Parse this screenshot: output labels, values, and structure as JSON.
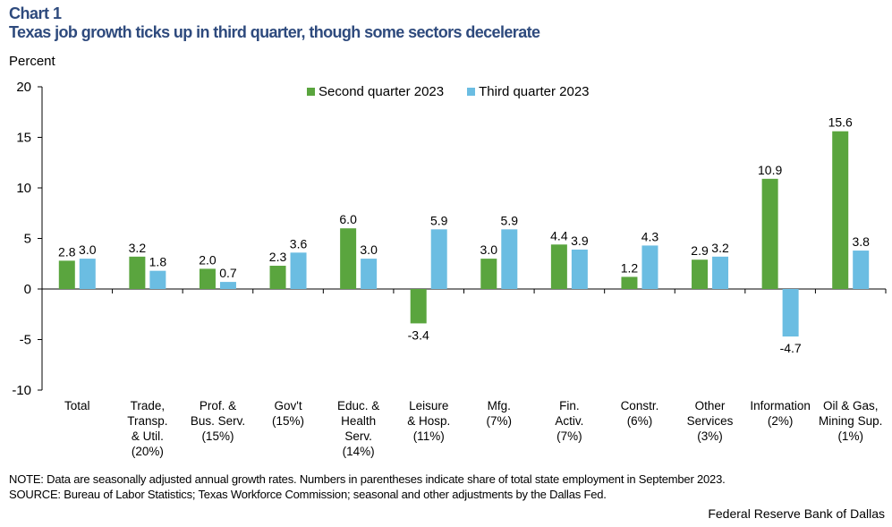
{
  "header": {
    "chart_number": "Chart 1",
    "title": "Texas job growth ticks up in third quarter, though some sectors decelerate",
    "unit_label": "Percent"
  },
  "footer": {
    "note": "NOTE: Data are seasonally adjusted annual growth rates. Numbers in parentheses indicate share of total state employment in September 2023.",
    "source": "SOURCE: Bureau of Labor Statistics; Texas Workforce Commission; seasonal and other adjustments by the Dallas Fed.",
    "credit": "Federal Reserve Bank of Dallas"
  },
  "colors": {
    "second_quarter": "#5aa53e",
    "third_quarter": "#6bbde2"
  },
  "chart_data": {
    "type": "bar",
    "title": "Texas job growth ticks up in third quarter, though some sectors decelerate",
    "xlabel": "",
    "ylabel": "Percent",
    "ylim": [
      -10,
      20
    ],
    "yticks": [
      20,
      15,
      10,
      5,
      0,
      -5,
      -10
    ],
    "grid": false,
    "legend_position": "top-center",
    "categories": [
      [
        "Total"
      ],
      [
        "Trade,",
        "Transp.",
        "& Util.",
        "(20%)"
      ],
      [
        "Prof. &",
        "Bus. Serv.",
        "(15%)"
      ],
      [
        "Gov't",
        "(15%)"
      ],
      [
        "Educ. &",
        "Health",
        "Serv.",
        "(14%)"
      ],
      [
        "Leisure",
        "& Hosp.",
        "(11%)"
      ],
      [
        "Mfg.",
        "(7%)"
      ],
      [
        "Fin.",
        "Activ.",
        "(7%)"
      ],
      [
        "Constr.",
        "(6%)"
      ],
      [
        "Other",
        "Services",
        "(3%)"
      ],
      [
        "Information",
        "(2%)"
      ],
      [
        "Oil & Gas,",
        "Mining Sup.",
        "(1%)"
      ]
    ],
    "series": [
      {
        "name": "Second quarter 2023",
        "color": "#5aa53e",
        "values": [
          2.8,
          3.2,
          2.0,
          2.3,
          6.0,
          -3.4,
          3.0,
          4.4,
          1.2,
          2.9,
          10.9,
          15.6
        ]
      },
      {
        "name": "Third quarter 2023",
        "color": "#6bbde2",
        "values": [
          3.0,
          1.8,
          0.7,
          3.6,
          3.0,
          5.9,
          5.9,
          3.9,
          4.3,
          3.2,
          -4.7,
          3.8
        ]
      }
    ]
  }
}
